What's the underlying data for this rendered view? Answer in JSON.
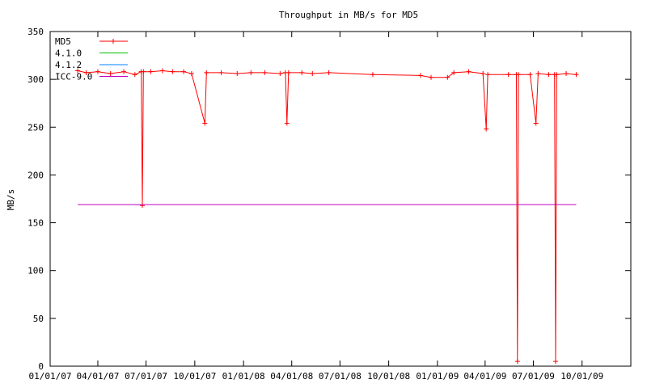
{
  "chart_data": {
    "type": "line",
    "title": "Throughput in MB/s for MD5",
    "xlabel": "",
    "ylabel": "MB/s",
    "xlim": [
      "2007-01-01",
      "2010-01-01"
    ],
    "ylim": [
      0,
      350
    ],
    "x_ticks": [
      "01/01/07",
      "04/01/07",
      "07/01/07",
      "10/01/07",
      "01/01/08",
      "04/01/08",
      "07/01/08",
      "10/01/08",
      "01/01/09",
      "04/01/09",
      "07/01/09",
      "10/01/09"
    ],
    "y_ticks": [
      0,
      50,
      100,
      150,
      200,
      250,
      300,
      350
    ],
    "grid": false,
    "legend_position": "top-left",
    "series": [
      {
        "name": "MD5",
        "color": "#ff0000",
        "marker": "plus",
        "points": [
          [
            "2007-02-22",
            309
          ],
          [
            "2007-03-10",
            307
          ],
          [
            "2007-04-01",
            308
          ],
          [
            "2007-04-25",
            306
          ],
          [
            "2007-05-20",
            308
          ],
          [
            "2007-06-10",
            305
          ],
          [
            "2007-06-22",
            308
          ],
          [
            "2007-06-24",
            168
          ],
          [
            "2007-06-26",
            308
          ],
          [
            "2007-07-10",
            308
          ],
          [
            "2007-08-01",
            309
          ],
          [
            "2007-08-20",
            308
          ],
          [
            "2007-09-10",
            308
          ],
          [
            "2007-09-25",
            306
          ],
          [
            "2007-10-20",
            254
          ],
          [
            "2007-10-23",
            307
          ],
          [
            "2007-11-20",
            307
          ],
          [
            "2007-12-20",
            306
          ],
          [
            "2008-01-15",
            307
          ],
          [
            "2008-02-10",
            307
          ],
          [
            "2008-03-10",
            306
          ],
          [
            "2008-03-20",
            307
          ],
          [
            "2008-03-23",
            254
          ],
          [
            "2008-03-26",
            307
          ],
          [
            "2008-04-20",
            307
          ],
          [
            "2008-05-10",
            306
          ],
          [
            "2008-06-10",
            307
          ],
          [
            "2008-09-01",
            305
          ],
          [
            "2008-11-30",
            304
          ],
          [
            "2008-12-20",
            302
          ],
          [
            "2009-01-20",
            302
          ],
          [
            "2009-02-01",
            307
          ],
          [
            "2009-03-01",
            308
          ],
          [
            "2009-03-28",
            306
          ],
          [
            "2009-04-03",
            248
          ],
          [
            "2009-04-06",
            305
          ],
          [
            "2009-05-15",
            305
          ],
          [
            "2009-05-30",
            305
          ],
          [
            "2009-06-01",
            5
          ],
          [
            "2009-06-03",
            305
          ],
          [
            "2009-06-25",
            305
          ],
          [
            "2009-07-06",
            254
          ],
          [
            "2009-07-10",
            306
          ],
          [
            "2009-07-30",
            305
          ],
          [
            "2009-08-10",
            305
          ],
          [
            "2009-08-12",
            5
          ],
          [
            "2009-08-14",
            305
          ],
          [
            "2009-09-01",
            306
          ],
          [
            "2009-09-20",
            305
          ]
        ]
      },
      {
        "name": "4.1.0",
        "color": "#00c000",
        "points": []
      },
      {
        "name": "4.1.2",
        "color": "#0080ff",
        "points": []
      },
      {
        "name": "ICC-9.0",
        "color": "#c000c0",
        "points": [
          [
            "2007-02-22",
            169
          ],
          [
            "2009-09-20",
            169
          ]
        ]
      }
    ]
  }
}
